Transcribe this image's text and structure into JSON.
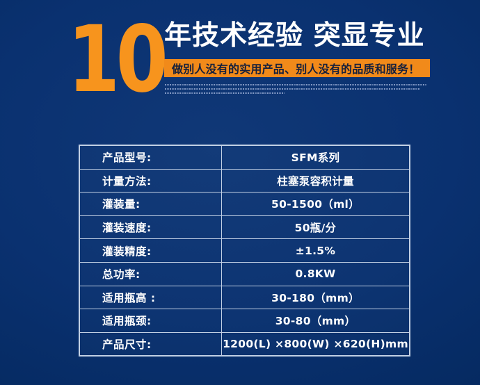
{
  "hero": {
    "big_number": "10",
    "headline": "年技术经验 突显专业",
    "banner_text": "做别人没有的实用产品、别人没有的品质和服务！"
  },
  "colors": {
    "background_navy": "#0A3170",
    "accent_orange": "#F7941D",
    "banner_orange": "#F18A1A",
    "banner_text_dark": "#16203C",
    "table_border": "#C2D0E4",
    "text_white": "#FFFFFF"
  },
  "spec_table": {
    "rows": [
      {
        "label": "产品型号:",
        "value": "SFM系列"
      },
      {
        "label": "计量方法:",
        "value": "柱塞泵容积计量"
      },
      {
        "label": "灌装量:",
        "value": "50-1500（ml）"
      },
      {
        "label": "灌装速度:",
        "value": "50瓶/分"
      },
      {
        "label": "灌装精度:",
        "value": "±1.5%"
      },
      {
        "label": "总功率:",
        "value": "0.8KW"
      },
      {
        "label": "适用瓶高 :",
        "value": "30-180（mm）"
      },
      {
        "label": "适用瓶颈:",
        "value": "30-80（mm）"
      },
      {
        "label": "产品尺寸:",
        "value": "1200(L) ×800(W) ×620(H)mm"
      }
    ]
  }
}
